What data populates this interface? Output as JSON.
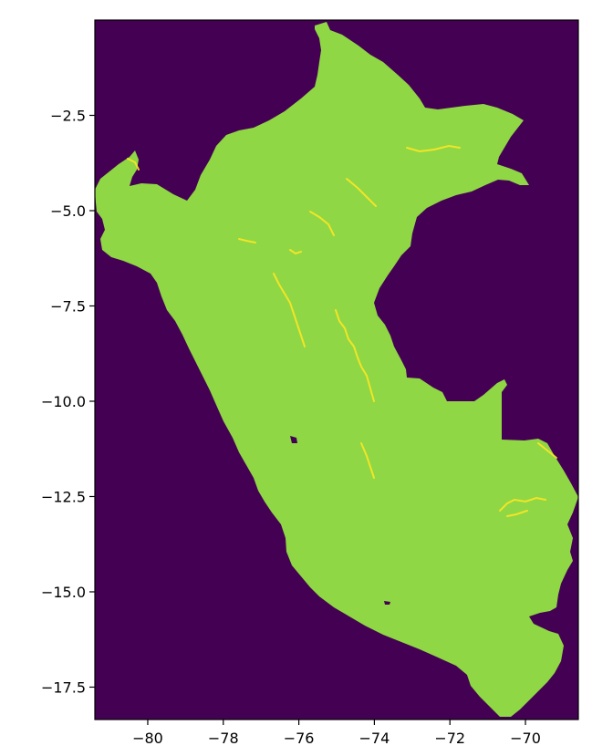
{
  "chart_data": {
    "type": "heatmap",
    "title": "",
    "xlabel": "",
    "ylabel": "",
    "xlim": [
      -81.4,
      -68.6
    ],
    "ylim": [
      -18.35,
      -0.0
    ],
    "x_ticks": [
      {
        "value": -80,
        "label": "−80"
      },
      {
        "value": -78,
        "label": "−78"
      },
      {
        "value": -76,
        "label": "−76"
      },
      {
        "value": -74,
        "label": "−74"
      },
      {
        "value": -72,
        "label": "−72"
      },
      {
        "value": -70,
        "label": "−70"
      }
    ],
    "y_ticks": [
      {
        "value": -2.5,
        "label": "−2.5"
      },
      {
        "value": -5.0,
        "label": "−5.0"
      },
      {
        "value": -7.5,
        "label": "−7.5"
      },
      {
        "value": -10.0,
        "label": "−10.0"
      },
      {
        "value": -12.5,
        "label": "−12.5"
      },
      {
        "value": -15.0,
        "label": "−15.0"
      },
      {
        "value": -17.5,
        "label": "−17.5"
      }
    ],
    "colormap": "viridis",
    "colors": {
      "background": "#440154",
      "land": "#8fd744",
      "highlight": "#fde725"
    },
    "grid": false,
    "legend": "none"
  }
}
